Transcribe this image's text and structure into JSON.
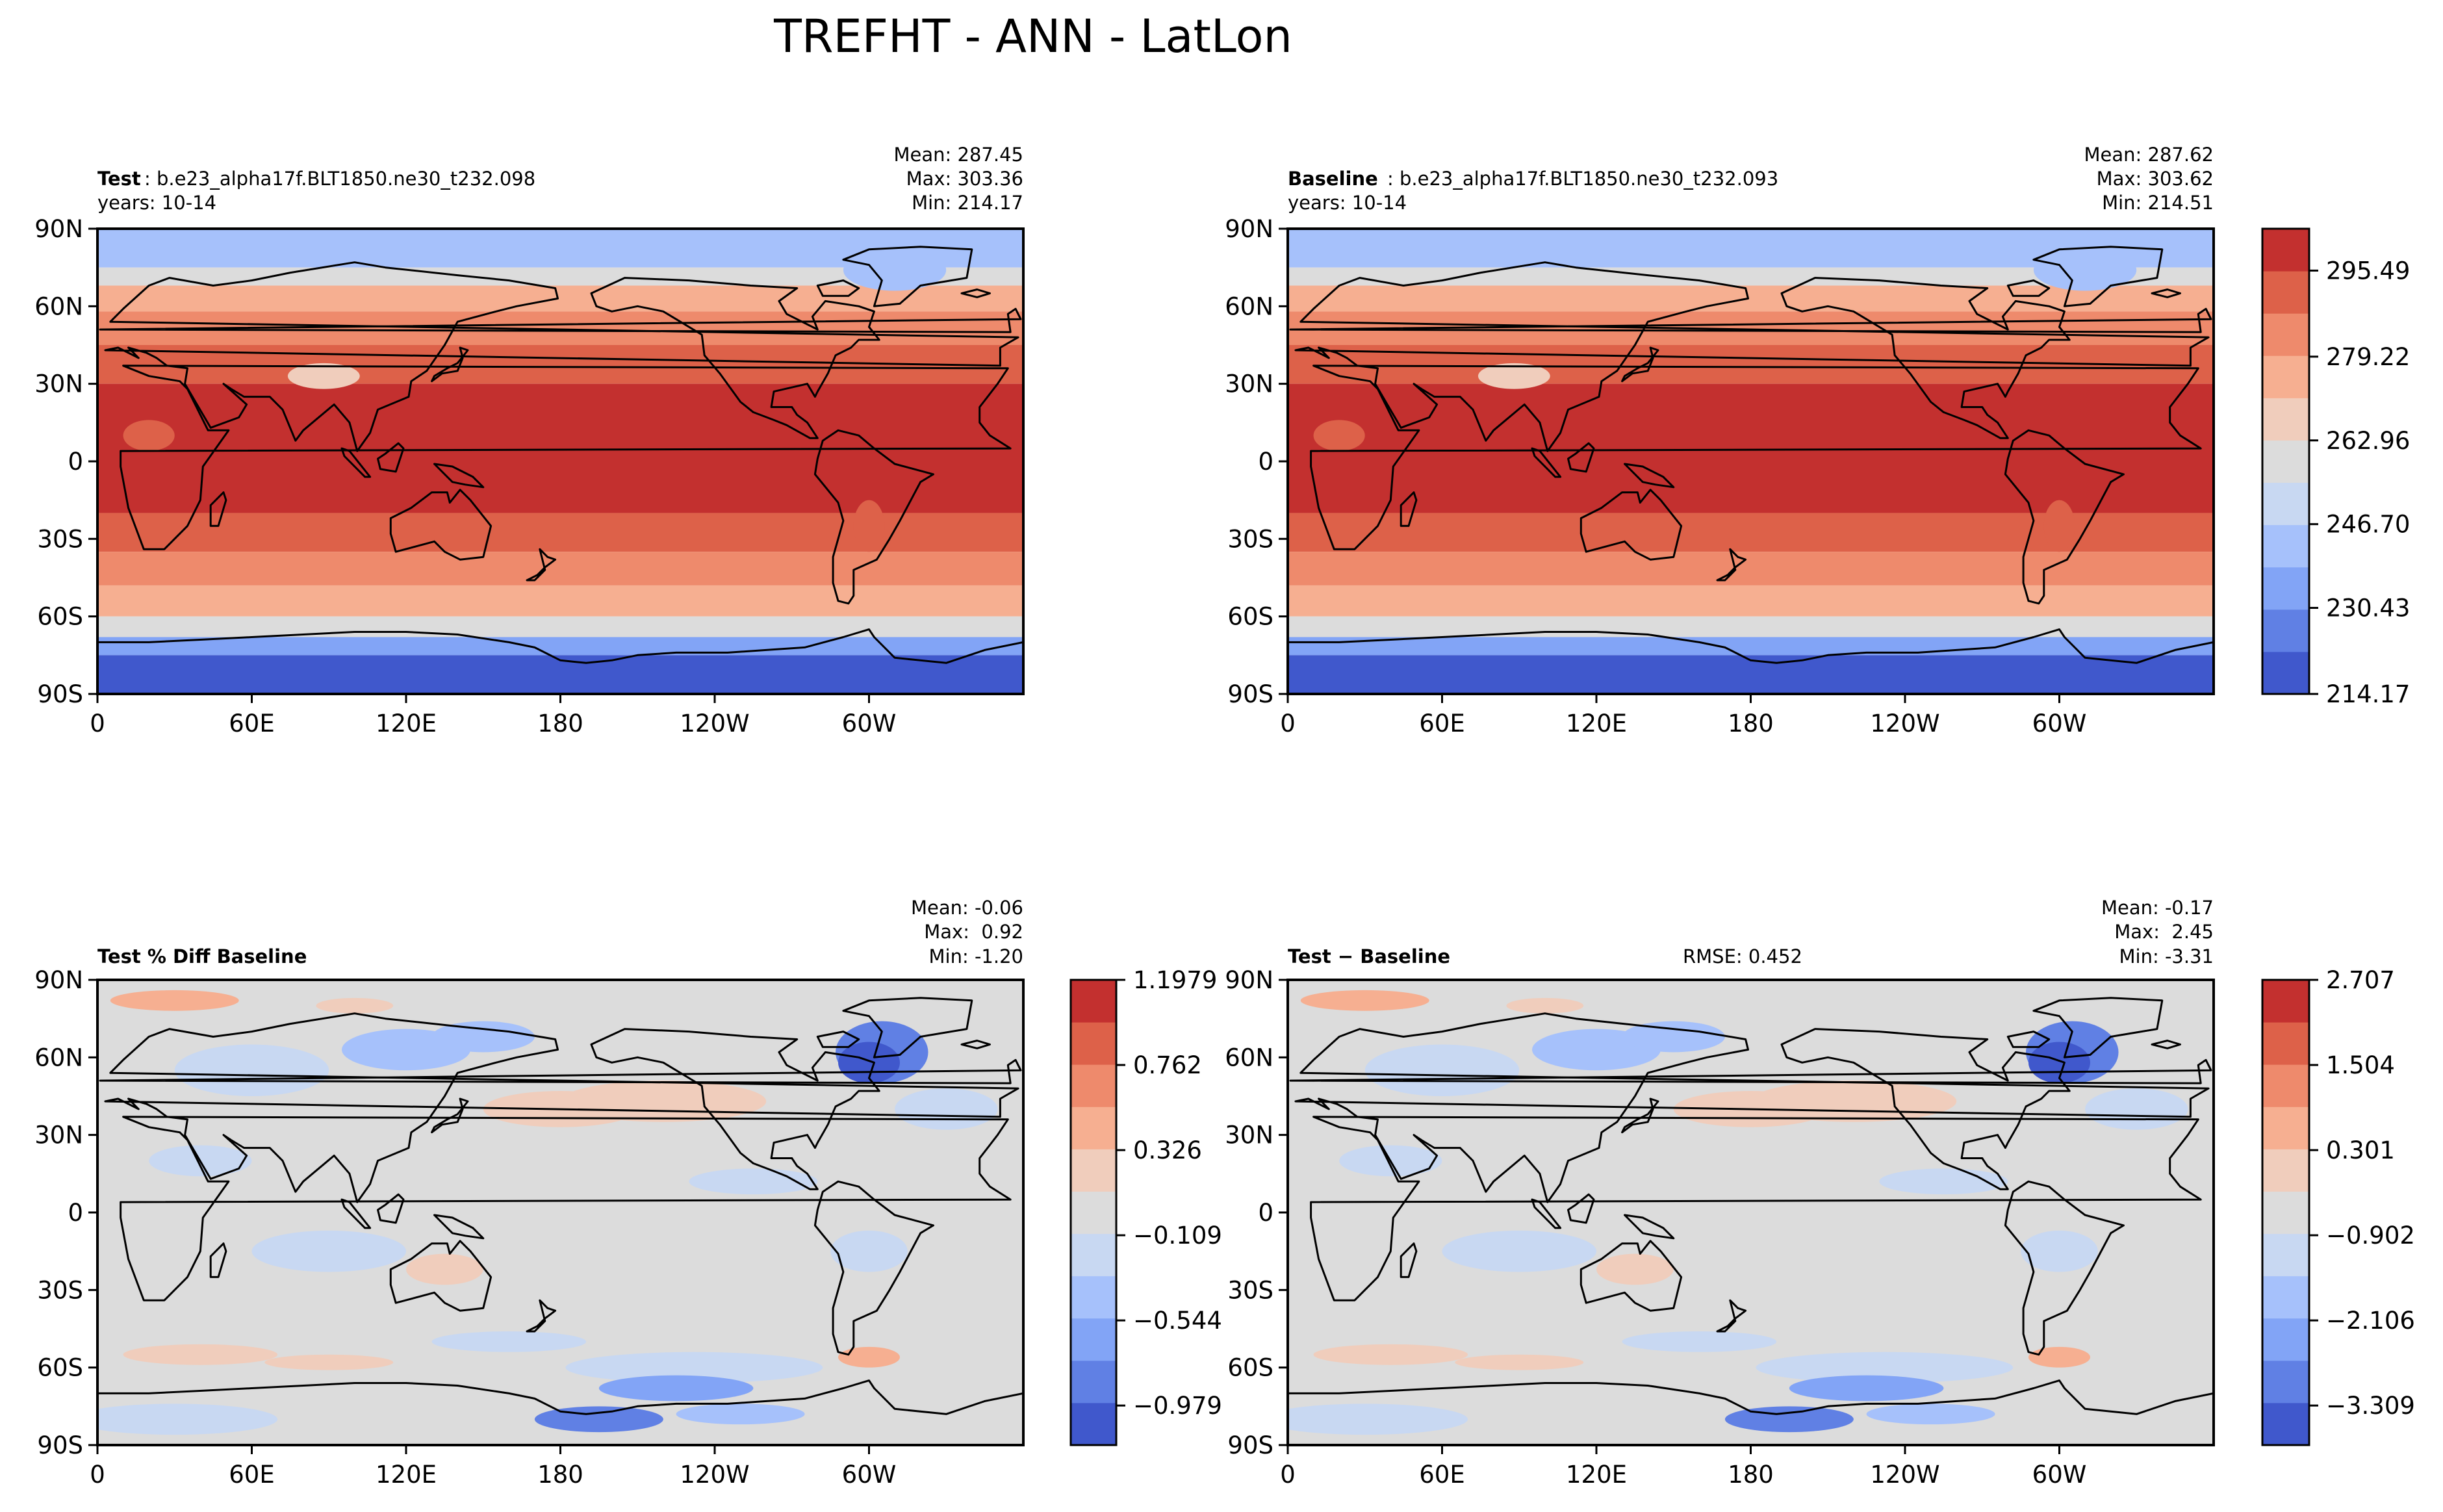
{
  "figure": {
    "title": "TREFHT - ANN - LatLon"
  },
  "chart_data": [
    {
      "type": "heatmap",
      "panel": "test",
      "header": {
        "name": "Test",
        "case": " : b.e23_alpha17f.BLT1850.ne30_t232.098",
        "years": "years: 10-14"
      },
      "stats": {
        "mean": "Mean: 287.45",
        "max": "Max: 303.36",
        "min": "Min: 214.17"
      },
      "xticks": [
        "0",
        "60E",
        "120E",
        "180",
        "120W",
        "60W"
      ],
      "yticks": [
        "90N",
        "60N",
        "30N",
        "0",
        "30S",
        "60S",
        "90S"
      ],
      "field_bands": [
        {
          "lat_top": 90,
          "lat_bottom": 75,
          "level": 3
        },
        {
          "lat_top": 75,
          "lat_bottom": 68,
          "level": 5
        },
        {
          "lat_top": 68,
          "lat_bottom": 58,
          "level": 7
        },
        {
          "lat_top": 58,
          "lat_bottom": 45,
          "level": 8
        },
        {
          "lat_top": 45,
          "lat_bottom": 30,
          "level": 9
        },
        {
          "lat_top": 30,
          "lat_bottom": -20,
          "level": 10
        },
        {
          "lat_top": -20,
          "lat_bottom": -35,
          "level": 9
        },
        {
          "lat_top": -35,
          "lat_bottom": -48,
          "level": 8
        },
        {
          "lat_top": -48,
          "lat_bottom": -60,
          "level": 7
        },
        {
          "lat_top": -60,
          "lat_bottom": -68,
          "level": 5
        },
        {
          "lat_top": -68,
          "lat_bottom": -75,
          "level": 2
        },
        {
          "lat_top": -75,
          "lat_bottom": -90,
          "level": 0
        }
      ]
    },
    {
      "type": "heatmap",
      "panel": "baseline",
      "header": {
        "name": "Baseline",
        "case": " : b.e23_alpha17f.BLT1850.ne30_t232.093",
        "years": "years: 10-14"
      },
      "stats": {
        "mean": "Mean: 287.62",
        "max": "Max: 303.62",
        "min": "Min: 214.51"
      },
      "xticks": [
        "0",
        "60E",
        "120E",
        "180",
        "120W",
        "60W"
      ],
      "yticks": [
        "90N",
        "60N",
        "30N",
        "0",
        "30S",
        "60S",
        "90S"
      ],
      "field_bands": [
        {
          "lat_top": 90,
          "lat_bottom": 75,
          "level": 3
        },
        {
          "lat_top": 75,
          "lat_bottom": 68,
          "level": 5
        },
        {
          "lat_top": 68,
          "lat_bottom": 58,
          "level": 7
        },
        {
          "lat_top": 58,
          "lat_bottom": 45,
          "level": 8
        },
        {
          "lat_top": 45,
          "lat_bottom": 30,
          "level": 9
        },
        {
          "lat_top": 30,
          "lat_bottom": -20,
          "level": 10
        },
        {
          "lat_top": -20,
          "lat_bottom": -35,
          "level": 9
        },
        {
          "lat_top": -35,
          "lat_bottom": -48,
          "level": 8
        },
        {
          "lat_top": -48,
          "lat_bottom": -60,
          "level": 7
        },
        {
          "lat_top": -60,
          "lat_bottom": -68,
          "level": 5
        },
        {
          "lat_top": -68,
          "lat_bottom": -75,
          "level": 2
        },
        {
          "lat_top": -75,
          "lat_bottom": -90,
          "level": 0
        }
      ],
      "colorbar": {
        "ticks": [
          "295.49",
          "279.22",
          "262.96",
          "246.70",
          "230.43",
          "214.17"
        ]
      }
    },
    {
      "type": "heatmap",
      "panel": "percent-diff",
      "header": {
        "name": "Test % Diff Baseline"
      },
      "stats": {
        "mean": "Mean: -0.06",
        "max": "Max:  0.92",
        "min": "Min: -1.20"
      },
      "xticks": [
        "0",
        "60E",
        "120E",
        "180",
        "120W",
        "60W"
      ],
      "yticks": [
        "90N",
        "60N",
        "30N",
        "0",
        "30S",
        "60S",
        "90S"
      ],
      "colorbar": {
        "ticks": [
          "1.1979",
          "0.762",
          "0.326",
          "−0.109",
          "−0.544",
          "−0.979"
        ]
      }
    },
    {
      "type": "heatmap",
      "panel": "difference",
      "header": {
        "name": "Test − Baseline",
        "rmse": "RMSE: 0.452"
      },
      "stats": {
        "mean": "Mean: -0.17",
        "max": "Max:  2.45",
        "min": "Min: -3.31"
      },
      "xticks": [
        "0",
        "60E",
        "120E",
        "180",
        "120W",
        "60W"
      ],
      "yticks": [
        "90N",
        "60N",
        "30N",
        "0",
        "30S",
        "60S",
        "90S"
      ],
      "colorbar": {
        "ticks": [
          "2.707",
          "1.504",
          "0.301",
          "−0.902",
          "−2.106",
          "−3.309"
        ]
      }
    }
  ],
  "palette": [
    "#4058cc",
    "#6080e4",
    "#82a4f6",
    "#a6c1fb",
    "#c8d8f2",
    "#dcdcdc",
    "#f0cdbc",
    "#f6af91",
    "#ee8a6c",
    "#dd6149",
    "#c3302f"
  ]
}
